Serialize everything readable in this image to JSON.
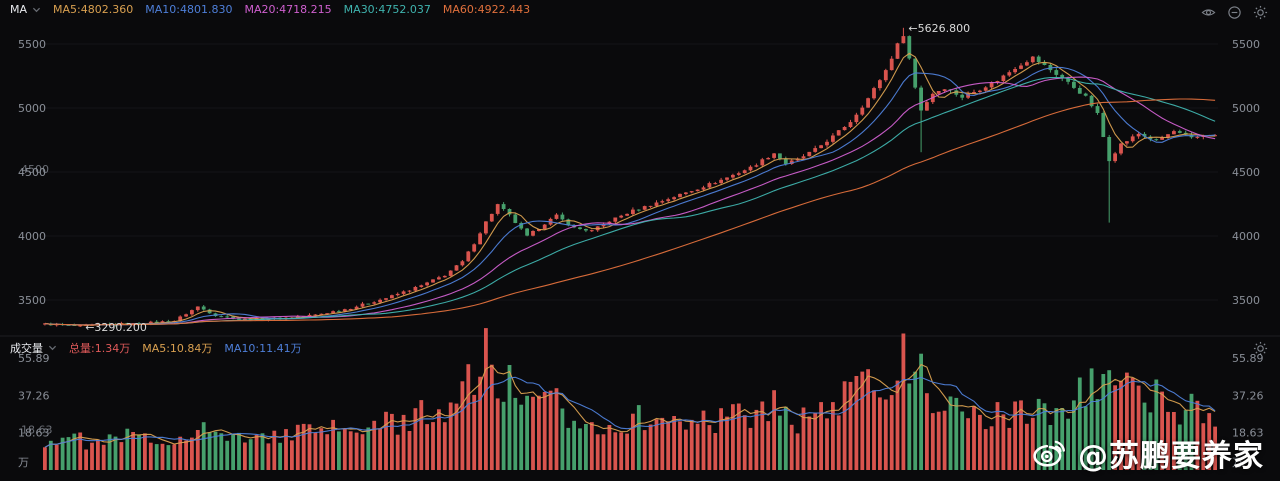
{
  "header": {
    "indicator": "MA",
    "ma_legend": [
      {
        "text": "MA5:4802.360",
        "color": "#d9a050"
      },
      {
        "text": "MA10:4801.830",
        "color": "#4e7fd9"
      },
      {
        "text": "MA20:4718.215",
        "color": "#cf5fcf"
      },
      {
        "text": "MA30:4752.037",
        "color": "#3fb3ae"
      },
      {
        "text": "MA60:4922.443",
        "color": "#e0703c"
      }
    ]
  },
  "volume": {
    "title": "成交量",
    "items": [
      {
        "text": "总量:1.34万",
        "color": "#e05a5a"
      },
      {
        "text": "MA5:10.84万",
        "color": "#d9a050"
      },
      {
        "text": "MA10:11.41万",
        "color": "#4e7fd9"
      }
    ],
    "unit": "万"
  },
  "watermark": {
    "handle": "@苏鹏要养家"
  },
  "main_axis": {
    "labels": [
      {
        "text": "5500",
        "value": 5500
      },
      {
        "text": "5000",
        "value": 5000
      },
      {
        "text": "4500",
        "value": 4500,
        "ghost": true
      },
      {
        "text": "4000",
        "value": 4000
      },
      {
        "text": "3500",
        "value": 3500
      }
    ]
  },
  "volume_axis": {
    "labels": [
      {
        "text": "55.89",
        "value": 55.89
      },
      {
        "text": "37.26",
        "value": 37.26
      },
      {
        "text": "18.63",
        "value": 18.63,
        "ghost": true
      }
    ],
    "unit": "万"
  },
  "annotations": [
    {
      "text": "←5626.800",
      "i": 146,
      "value": 5626.8,
      "anchor": "high"
    },
    {
      "text": "←3290.200",
      "i": 6,
      "value": 3290.2,
      "anchor": "low"
    }
  ],
  "chart_data": {
    "type": "candlestick",
    "title": "",
    "n": 200,
    "price_range_shown": [
      3500,
      5500
    ],
    "high_annotated": 5626.8,
    "low_annotated": 3290.2,
    "ma_values": {
      "MA5": 4802.36,
      "MA10": 4801.83,
      "MA20": 4718.215,
      "MA30": 4752.037,
      "MA60": 4922.443
    },
    "volume_stats": {
      "total": 1.34,
      "MA5": 10.84,
      "MA10": 11.41,
      "unit": "万",
      "axis_max": 55.89
    },
    "ma_periods": [
      5,
      10,
      20,
      30,
      60
    ],
    "colors": {
      "up": "#d9544e",
      "down": "#46a06c",
      "ma5": "#d9a050",
      "ma10": "#4e7fd9",
      "ma20": "#cf5fcf",
      "ma30": "#3fb3ae",
      "ma60": "#e0703c",
      "axis_text": "#8a8f98",
      "annotation_text": "#d9d9d9",
      "grid": "#141418",
      "divider": "#1e1e22"
    },
    "price_keyframes": [
      [
        0,
        3312
      ],
      [
        4,
        3300
      ],
      [
        6,
        3294
      ],
      [
        10,
        3308
      ],
      [
        16,
        3316
      ],
      [
        22,
        3338
      ],
      [
        26,
        3448
      ],
      [
        29,
        3382
      ],
      [
        34,
        3350
      ],
      [
        40,
        3356
      ],
      [
        46,
        3384
      ],
      [
        52,
        3438
      ],
      [
        58,
        3515
      ],
      [
        64,
        3612
      ],
      [
        68,
        3695
      ],
      [
        71,
        3798
      ],
      [
        73,
        3945
      ],
      [
        75,
        4110
      ],
      [
        77,
        4245
      ],
      [
        79,
        4160
      ],
      [
        82,
        3995
      ],
      [
        85,
        4098
      ],
      [
        87,
        4158
      ],
      [
        90,
        4062
      ],
      [
        93,
        4040
      ],
      [
        96,
        4118
      ],
      [
        100,
        4198
      ],
      [
        105,
        4275
      ],
      [
        110,
        4355
      ],
      [
        115,
        4438
      ],
      [
        120,
        4535
      ],
      [
        124,
        4648
      ],
      [
        126,
        4565
      ],
      [
        128,
        4598
      ],
      [
        131,
        4675
      ],
      [
        134,
        4778
      ],
      [
        137,
        4895
      ],
      [
        140,
        5075
      ],
      [
        143,
        5295
      ],
      [
        145,
        5495
      ],
      [
        146,
        5575
      ],
      [
        147,
        5385
      ],
      [
        148,
        5160
      ],
      [
        149,
        4985
      ],
      [
        151,
        5115
      ],
      [
        153,
        5158
      ],
      [
        156,
        5085
      ],
      [
        159,
        5148
      ],
      [
        162,
        5218
      ],
      [
        165,
        5315
      ],
      [
        168,
        5395
      ],
      [
        171,
        5298
      ],
      [
        174,
        5198
      ],
      [
        177,
        5085
      ],
      [
        179,
        4952
      ],
      [
        181,
        4595
      ],
      [
        183,
        4718
      ],
      [
        186,
        4798
      ],
      [
        189,
        4742
      ],
      [
        192,
        4818
      ],
      [
        195,
        4762
      ],
      [
        198,
        4795
      ],
      [
        199,
        4782
      ]
    ],
    "wick_overrides": {
      "6": {
        "low": 3290.2
      },
      "146": {
        "high": 5626.8
      },
      "149": {
        "low": 4655
      },
      "181": {
        "low": 4105
      }
    },
    "volume_keyframes": [
      [
        0,
        14
      ],
      [
        4,
        18
      ],
      [
        8,
        12
      ],
      [
        14,
        17
      ],
      [
        20,
        13
      ],
      [
        26,
        23
      ],
      [
        31,
        15
      ],
      [
        38,
        17
      ],
      [
        46,
        19
      ],
      [
        54,
        21
      ],
      [
        62,
        25
      ],
      [
        68,
        32
      ],
      [
        72,
        44
      ],
      [
        75,
        55.5
      ],
      [
        77,
        47
      ],
      [
        80,
        38
      ],
      [
        83,
        30
      ],
      [
        86,
        34
      ],
      [
        90,
        26
      ],
      [
        95,
        22
      ],
      [
        100,
        26
      ],
      [
        105,
        23
      ],
      [
        110,
        27
      ],
      [
        115,
        25
      ],
      [
        120,
        29
      ],
      [
        124,
        33
      ],
      [
        128,
        25
      ],
      [
        132,
        29
      ],
      [
        136,
        35
      ],
      [
        140,
        43
      ],
      [
        143,
        48
      ],
      [
        146,
        55
      ],
      [
        148,
        51
      ],
      [
        150,
        40
      ],
      [
        153,
        33
      ],
      [
        156,
        27
      ],
      [
        159,
        25
      ],
      [
        162,
        29
      ],
      [
        165,
        27
      ],
      [
        168,
        31
      ],
      [
        171,
        29
      ],
      [
        174,
        33
      ],
      [
        177,
        39
      ],
      [
        179,
        43
      ],
      [
        181,
        49
      ],
      [
        184,
        39
      ],
      [
        187,
        33
      ],
      [
        190,
        37
      ],
      [
        193,
        29
      ],
      [
        196,
        33
      ],
      [
        199,
        19
      ]
    ]
  }
}
